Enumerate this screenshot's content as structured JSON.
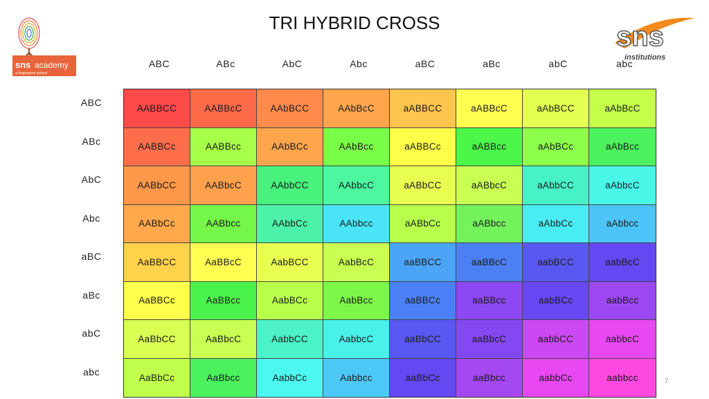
{
  "title": "TRI HYBRID CROSS",
  "logos": {
    "left": {
      "name": "sns-academy-logo",
      "brand": "sns",
      "text": "academy",
      "tagline": "a fingerprint school",
      "color": "#e8643a"
    },
    "right": {
      "name": "sns-institutions-logo",
      "brand": "sns",
      "text": "institutions",
      "color": "#f28a1e"
    }
  },
  "gametes": [
    "ABC",
    "ABc",
    "AbC",
    "Abc",
    "aBC",
    "aBc",
    "abC",
    "abc"
  ],
  "grid": [
    [
      "AABBCC",
      "AABBcC",
      "AAbBCC",
      "AAbBcC",
      "aABBCC",
      "aABBcC",
      "aAbBCC",
      "aAbBcC"
    ],
    [
      "AABBCc",
      "AABBcc",
      "AAbBCc",
      "AAbBcc",
      "aABBCc",
      "aABBcc",
      "aAbBCc",
      "aAbBcc"
    ],
    [
      "AABbCC",
      "AABbcC",
      "AAbbCC",
      "AAbbcC",
      "aABbCC",
      "aABbcC",
      "aAbbCC",
      "aAbbcC"
    ],
    [
      "AABbCc",
      "AABbcc",
      "AAbbCc",
      "AAbbcc",
      "aABbCc",
      "aABbcc",
      "aAbbCc",
      "aAbbcc"
    ],
    [
      "AaBBCC",
      "AaBBcC",
      "AabBCC",
      "AabBcC",
      "aaBBCC",
      "aaBBcC",
      "aabBCC",
      "aabBcC"
    ],
    [
      "AaBBCc",
      "AaBBcc",
      "AabBCc",
      "AabBcc",
      "aaBBCc",
      "aaBBcc",
      "aabBCc",
      "aabBcc"
    ],
    [
      "AaBbCC",
      "AaBbcC",
      "AabbCC",
      "AabbcC",
      "aaBbCC",
      "aaBbcC",
      "aabbCC",
      "aabbcC"
    ],
    [
      "AaBbCc",
      "AaBbcc",
      "AabbCc",
      "Aabbcc",
      "aaBbCc",
      "aaBbcc",
      "aabbCc",
      "aabbcc"
    ]
  ],
  "colors": [
    [
      "#ff4a4a",
      "#ff6a48",
      "#ff8a4c",
      "#ffa64c",
      "#ffc44e",
      "#ffff52",
      "#e4ff52",
      "#c4ff4a"
    ],
    [
      "#ff6e4a",
      "#a6ff48",
      "#ffa64c",
      "#7aff48",
      "#ffff4a",
      "#4cf74a",
      "#8cff4c",
      "#4cf25e"
    ],
    [
      "#ff984a",
      "#ffa04c",
      "#48f27c",
      "#4cf7a0",
      "#e8ff52",
      "#c8ff52",
      "#48f2c8",
      "#48f7e8"
    ],
    [
      "#ffa84c",
      "#74f748",
      "#4cf2a8",
      "#4ae4f7",
      "#b8ff4c",
      "#74f25c",
      "#48ecf2",
      "#4cc4f7"
    ],
    [
      "#ffd24c",
      "#ffff52",
      "#e8ff52",
      "#c8ff52",
      "#4ca4f7",
      "#4c80f2",
      "#5a58f2",
      "#6448f2"
    ],
    [
      "#ffff4c",
      "#4cf24c",
      "#b8ff4c",
      "#7cf748",
      "#4c80f7",
      "#8c48f2",
      "#6848f2",
      "#9c48f2"
    ],
    [
      "#d8ff52",
      "#c8ff52",
      "#4cf2c8",
      "#48f2e8",
      "#5a58f2",
      "#8448f2",
      "#cc48f2",
      "#e848f2"
    ],
    [
      "#c0ff4c",
      "#4cf25e",
      "#4cf7f0",
      "#4cc8f7",
      "#6448f2",
      "#a448f2",
      "#e848f2",
      "#ff48e0"
    ]
  ],
  "page_number": "7"
}
